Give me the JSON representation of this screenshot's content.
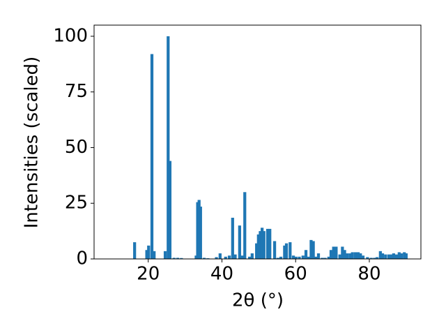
{
  "chart_data": {
    "type": "bar",
    "xlabel": "2θ (°)",
    "ylabel": "Intensities (scaled)",
    "color": "#1f77b4",
    "x": [
      16.3,
      19.6,
      20.1,
      21.0,
      21.6,
      24.6,
      25.4,
      25.9,
      27.0,
      28.0,
      29.0,
      33.0,
      33.4,
      33.8,
      34.2,
      35.2,
      36.2,
      38.5,
      39.5,
      41.0,
      42.0,
      42.9,
      43.6,
      44.8,
      45.5,
      46.2,
      47.5,
      48.2,
      49.4,
      49.9,
      50.4,
      50.9,
      51.4,
      52.4,
      53.0,
      54.3,
      55.2,
      56.0,
      57.0,
      57.5,
      58.5,
      59.4,
      60.1,
      61.0,
      62.0,
      62.8,
      63.5,
      64.2,
      64.8,
      65.5,
      66.2,
      67.2,
      68.0,
      69.0,
      69.6,
      70.3,
      71.0,
      72.0,
      72.7,
      73.3,
      74.0,
      74.8,
      75.4,
      76.2,
      77.0,
      77.6,
      78.3,
      79.5,
      80.5,
      81.4,
      82.1,
      83.0,
      83.6,
      84.4,
      85.3,
      86.0,
      86.6,
      87.4,
      88.1,
      88.7,
      89.5,
      90.0
    ],
    "values": [
      7.5,
      4,
      6,
      92,
      3.5,
      3.5,
      100,
      44,
      0.5,
      0.5,
      0.4,
      1.5,
      25.5,
      26.5,
      23.5,
      0.5,
      0.3,
      0.8,
      2.5,
      1,
      1.5,
      18.5,
      2,
      15,
      1.5,
      30,
      1,
      2.5,
      7,
      11,
      12.5,
      14,
      12.5,
      13.5,
      13.5,
      8,
      0.5,
      1,
      6,
      7,
      7.5,
      1.5,
      1,
      1,
      1.5,
      4,
      1,
      8.5,
      8,
      1,
      2.5,
      0.5,
      0.5,
      1,
      4,
      5.5,
      5.5,
      2,
      5.5,
      4,
      2.5,
      2.5,
      3,
      3,
      3,
      2.5,
      1.5,
      0.8,
      0.5,
      0.5,
      0.8,
      3.5,
      2.5,
      2,
      2,
      2,
      2.5,
      2,
      3,
      2.5,
      3,
      2.5
    ],
    "xlim": [
      5.3,
      94.0
    ],
    "xticks": [
      20,
      40,
      60,
      80
    ],
    "ylim": [
      0,
      105
    ],
    "yticks": [
      0,
      25,
      50,
      75,
      100
    ]
  }
}
